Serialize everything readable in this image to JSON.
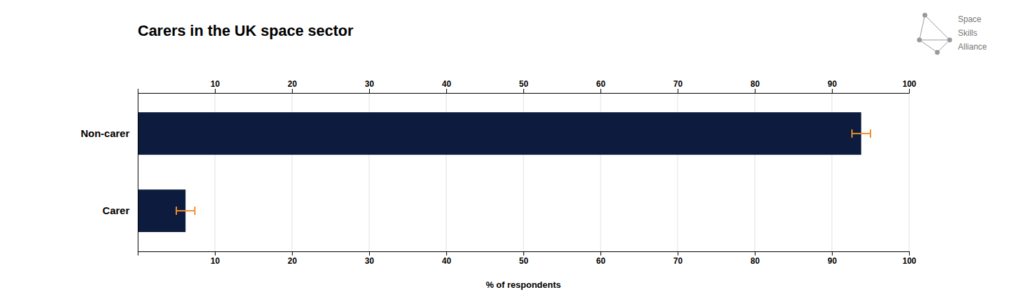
{
  "chart_data": {
    "type": "bar",
    "orientation": "horizontal",
    "title": "Carers in the UK space sector",
    "categories": [
      "Non-carer",
      "Carer"
    ],
    "values": [
      93.8,
      6.2
    ],
    "errors": [
      1.2,
      1.2
    ],
    "color": "#0d1b3e",
    "xlabel": "% of respondents",
    "xlim": [
      0,
      100
    ],
    "xticks": [
      10,
      20,
      30,
      40,
      50,
      60,
      70,
      80,
      90,
      100
    ],
    "grid": true,
    "annotations": [
      "Space",
      "Skills",
      "Alliance"
    ]
  }
}
